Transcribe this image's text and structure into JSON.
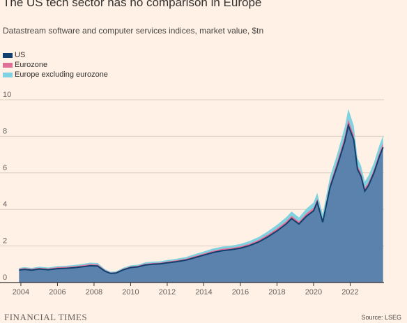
{
  "colors": {
    "background": "#fff1e5",
    "us": "#5a82ad",
    "us_line": "#12406e",
    "eurozone": "#e0709a",
    "europe_ex_eurozone": "#7fd2df",
    "grid": "#d9cdc2",
    "axis": "#33302e"
  },
  "header": {
    "title": "The US tech sector has no comparison in Europe",
    "subtitle": "Datastream software and computer services indices, market value, $tn"
  },
  "footer": {
    "brand": "FINANCIAL TIMES",
    "source": "Source: LSEG"
  },
  "chart_data": {
    "type": "area",
    "stacked": true,
    "title": "The US tech sector has no comparison in Europe",
    "subtitle": "Datastream software and computer services indices, market value, $tn",
    "legend_position": "top-left",
    "grid": true,
    "xlim": [
      2003.85,
      2023.85
    ],
    "ylim": [
      0,
      10
    ],
    "x_ticks": [
      2004,
      2006,
      2008,
      2010,
      2012,
      2014,
      2016,
      2018,
      2020,
      2022
    ],
    "y_ticks": [
      0,
      2,
      4,
      6,
      8,
      10
    ],
    "x": [
      2003.9,
      2004.2,
      2004.6,
      2005.0,
      2005.5,
      2006.0,
      2006.5,
      2007.0,
      2007.5,
      2007.8,
      2008.2,
      2008.6,
      2008.9,
      2009.2,
      2009.6,
      2010.0,
      2010.4,
      2010.8,
      2011.2,
      2011.6,
      2012.0,
      2012.5,
      2013.0,
      2013.5,
      2014.0,
      2014.5,
      2015.0,
      2015.5,
      2016.0,
      2016.5,
      2017.0,
      2017.5,
      2018.0,
      2018.5,
      2018.8,
      2019.2,
      2019.6,
      2020.0,
      2020.2,
      2020.5,
      2020.9,
      2021.3,
      2021.7,
      2021.9,
      2022.2,
      2022.4,
      2022.6,
      2022.8,
      2023.0,
      2023.3,
      2023.6,
      2023.8
    ],
    "series": [
      {
        "name": "US",
        "values": [
          0.68,
          0.72,
          0.68,
          0.74,
          0.7,
          0.76,
          0.78,
          0.82,
          0.88,
          0.92,
          0.9,
          0.62,
          0.5,
          0.52,
          0.7,
          0.82,
          0.86,
          0.96,
          1.0,
          1.02,
          1.08,
          1.14,
          1.22,
          1.36,
          1.5,
          1.64,
          1.74,
          1.8,
          1.88,
          2.02,
          2.22,
          2.5,
          2.82,
          3.2,
          3.5,
          3.2,
          3.62,
          3.92,
          4.4,
          3.3,
          5.2,
          6.4,
          7.7,
          8.6,
          7.8,
          6.2,
          5.8,
          5.0,
          5.3,
          6.0,
          6.9,
          7.4
        ]
      },
      {
        "name": "Eurozone",
        "values": [
          0.07,
          0.07,
          0.07,
          0.07,
          0.07,
          0.08,
          0.08,
          0.08,
          0.09,
          0.09,
          0.09,
          0.06,
          0.05,
          0.05,
          0.06,
          0.06,
          0.06,
          0.07,
          0.07,
          0.07,
          0.07,
          0.08,
          0.08,
          0.09,
          0.09,
          0.1,
          0.1,
          0.1,
          0.1,
          0.11,
          0.12,
          0.13,
          0.14,
          0.15,
          0.15,
          0.14,
          0.16,
          0.18,
          0.19,
          0.16,
          0.22,
          0.26,
          0.3,
          0.32,
          0.28,
          0.22,
          0.2,
          0.18,
          0.19,
          0.2,
          0.22,
          0.23
        ]
      },
      {
        "name": "Europe excluding eurozone",
        "values": [
          0.05,
          0.05,
          0.05,
          0.06,
          0.05,
          0.06,
          0.06,
          0.07,
          0.07,
          0.08,
          0.08,
          0.05,
          0.04,
          0.04,
          0.05,
          0.06,
          0.06,
          0.07,
          0.07,
          0.07,
          0.08,
          0.08,
          0.09,
          0.1,
          0.11,
          0.12,
          0.12,
          0.12,
          0.13,
          0.14,
          0.15,
          0.17,
          0.2,
          0.22,
          0.24,
          0.22,
          0.25,
          0.28,
          0.32,
          0.3,
          0.38,
          0.4,
          0.5,
          0.58,
          0.5,
          0.4,
          0.38,
          0.34,
          0.36,
          0.36,
          0.4,
          0.4
        ]
      }
    ]
  }
}
